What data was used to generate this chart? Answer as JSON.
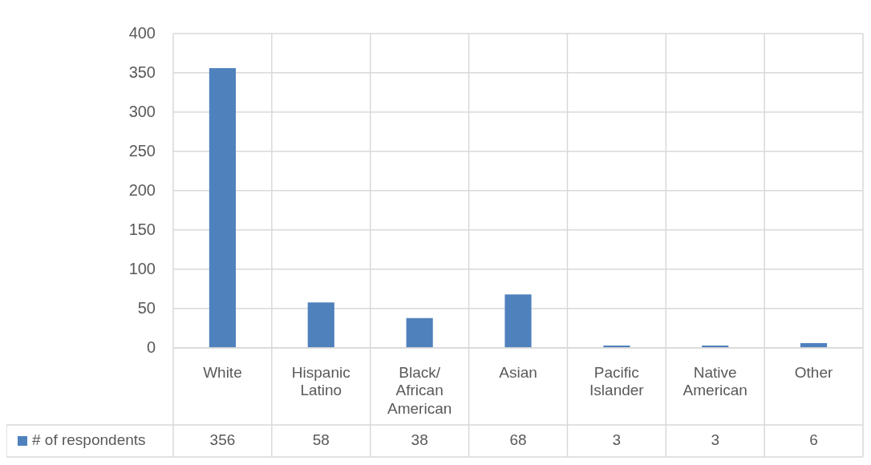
{
  "chart_data": {
    "type": "bar",
    "categories": [
      "White",
      "Hispanic Latino",
      "Black/ African American",
      "Asian",
      "Pacific Islander",
      "Native American",
      "Other"
    ],
    "series": [
      {
        "name": "# of respondents",
        "color": "#4f81bd",
        "values": [
          356,
          58,
          38,
          68,
          3,
          3,
          6
        ]
      }
    ],
    "ylim": [
      0,
      400
    ],
    "yticks": [
      0,
      50,
      100,
      150,
      200,
      250,
      300,
      350,
      400
    ],
    "grid": true,
    "legend": "bottom left",
    "data_labels": true
  }
}
